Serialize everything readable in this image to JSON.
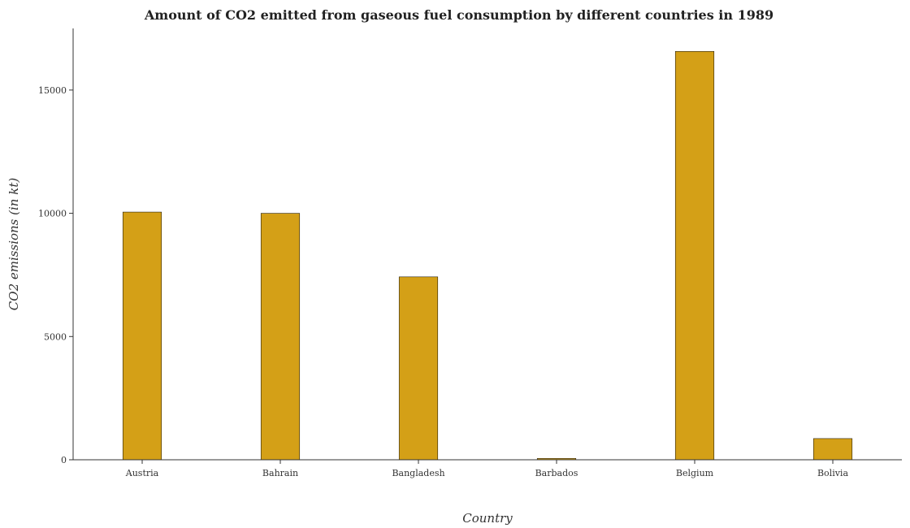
{
  "chart_data": {
    "type": "bar",
    "title": "Amount of CO2 emitted from gaseous fuel consumption by different countries in 1989",
    "xlabel": "Country",
    "ylabel": "CO2 emissions (in kt)",
    "categories": [
      "Austria",
      "Bahrain",
      "Bangladesh",
      "Barbados",
      "Belgium",
      "Bolivia"
    ],
    "values": [
      10050,
      10000,
      7420,
      55,
      16570,
      860
    ],
    "ylim": [
      0,
      17500
    ],
    "yticks": [
      0,
      5000,
      10000,
      15000
    ],
    "ytick_labels": [
      "0",
      "5000",
      "10000",
      "15000"
    ],
    "bar_color": "#d4a017",
    "grid": false
  }
}
